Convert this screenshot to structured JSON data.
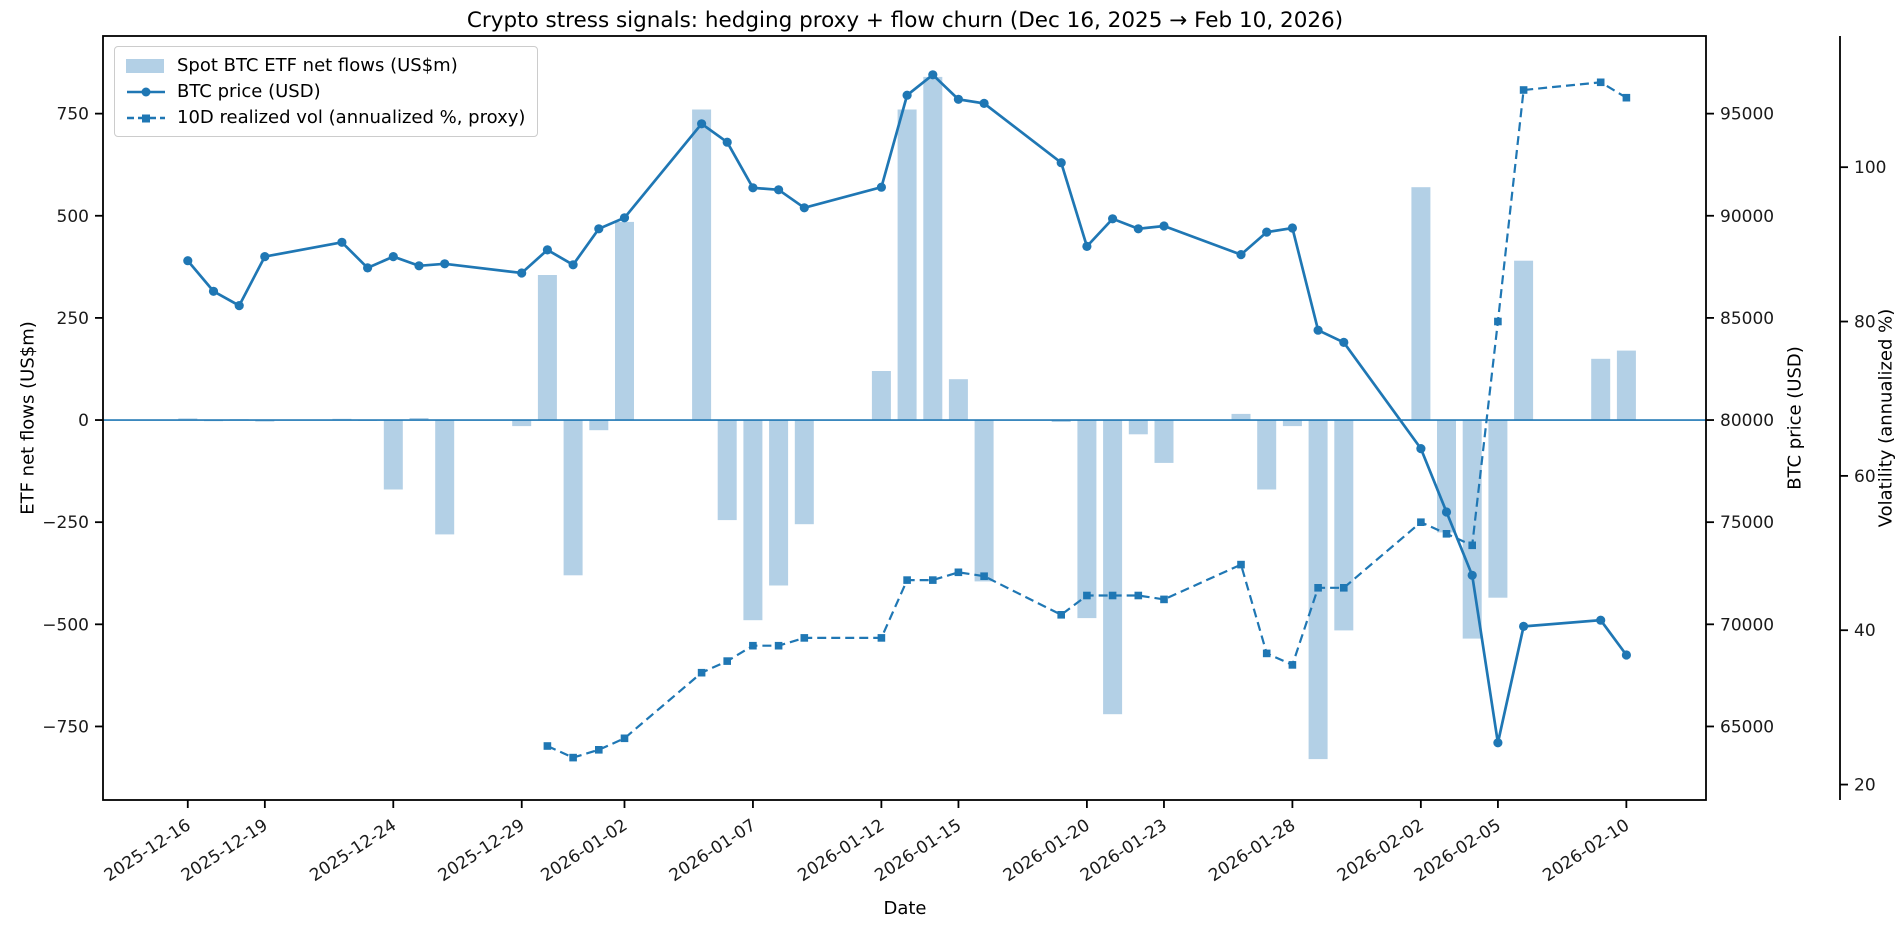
{
  "title": "Crypto stress signals: hedging proxy + flow churn (Dec 16, 2025 → Feb 10, 2026)",
  "colors": {
    "accent": "#1f77b4",
    "bar_fill": "#b3d0e6",
    "legend_border": "#cccccc",
    "spine": "#000000",
    "tick_label": "#1a1a1a"
  },
  "chart_data": {
    "type": "combo",
    "title": "Crypto stress signals: hedging proxy + flow churn (Dec 16, 2025 → Feb 10, 2026)",
    "xlabel": "Date",
    "ylabel_left": "ETF net flows (US$m)",
    "ylabel_right": "BTC price (USD)",
    "ylabel_right2": "Volatility (annualized %)",
    "grid": false,
    "legend_position": "upper left",
    "dates": [
      "2025-12-16",
      "2025-12-17",
      "2025-12-18",
      "2025-12-19",
      "2025-12-22",
      "2025-12-23",
      "2025-12-24",
      "2025-12-25",
      "2025-12-26",
      "2025-12-29",
      "2025-12-30",
      "2025-12-31",
      "2026-01-01",
      "2026-01-02",
      "2026-01-05",
      "2026-01-06",
      "2026-01-07",
      "2026-01-08",
      "2026-01-09",
      "2026-01-12",
      "2026-01-13",
      "2026-01-14",
      "2026-01-15",
      "2026-01-16",
      "2026-01-19",
      "2026-01-20",
      "2026-01-21",
      "2026-01-22",
      "2026-01-23",
      "2026-01-26",
      "2026-01-27",
      "2026-01-28",
      "2026-01-29",
      "2026-01-30",
      "2026-02-02",
      "2026-02-03",
      "2026-02-04",
      "2026-02-05",
      "2026-02-06",
      "2026-02-09",
      "2026-02-10"
    ],
    "day_offsets": [
      0,
      1,
      2,
      3,
      6,
      7,
      8,
      9,
      10,
      13,
      14,
      15,
      16,
      17,
      20,
      21,
      22,
      23,
      24,
      27,
      28,
      29,
      30,
      31,
      34,
      35,
      36,
      37,
      38,
      41,
      42,
      43,
      44,
      45,
      48,
      49,
      50,
      51,
      52,
      55,
      56
    ],
    "series": [
      {
        "name": "Spot BTC ETF net flows (US$m)",
        "type": "bar",
        "axis": "flows",
        "values": [
          4,
          -3,
          2,
          -4,
          3,
          -2,
          -170,
          5,
          -280,
          -15,
          355,
          -380,
          -25,
          485,
          760,
          -245,
          -490,
          -405,
          -255,
          120,
          760,
          840,
          100,
          -395,
          -5,
          -485,
          -720,
          -35,
          -105,
          15,
          -170,
          -15,
          -830,
          -515,
          570,
          -275,
          -535,
          -435,
          390,
          150,
          170
        ]
      },
      {
        "name": "BTC price (USD)",
        "type": "line",
        "axis": "price",
        "values": [
          87800,
          86300,
          85600,
          88000,
          88700,
          87450,
          88000,
          87550,
          87650,
          87200,
          88330,
          87600,
          89360,
          89900,
          94500,
          93600,
          91370,
          91270,
          90390,
          91400,
          95900,
          96900,
          95700,
          95500,
          92600,
          88500,
          89850,
          89360,
          89500,
          88100,
          89200,
          89400,
          84400,
          83800,
          78600,
          75500,
          72400,
          64200,
          69900,
          70200,
          68500
        ]
      },
      {
        "name": "10D realized vol (annualized %, proxy)",
        "type": "dashed-line",
        "axis": "vol",
        "values": [
          null,
          null,
          null,
          null,
          null,
          null,
          null,
          null,
          null,
          null,
          25,
          23.5,
          24.5,
          26,
          34.5,
          36,
          38,
          38,
          39,
          39,
          46.5,
          46.5,
          47.5,
          47,
          42,
          44.5,
          44.5,
          44.5,
          44,
          48.5,
          37,
          35.5,
          45.5,
          45.5,
          54,
          52.5,
          51,
          80,
          110,
          111,
          109
        ]
      }
    ],
    "x_ticks": [
      {
        "label": "2025-12-16",
        "day": 0
      },
      {
        "label": "2025-12-19",
        "day": 3
      },
      {
        "label": "2025-12-24",
        "day": 8
      },
      {
        "label": "2025-12-29",
        "day": 13
      },
      {
        "label": "2026-01-02",
        "day": 17
      },
      {
        "label": "2026-01-07",
        "day": 22
      },
      {
        "label": "2026-01-12",
        "day": 27
      },
      {
        "label": "2026-01-15",
        "day": 30
      },
      {
        "label": "2026-01-20",
        "day": 35
      },
      {
        "label": "2026-01-23",
        "day": 38
      },
      {
        "label": "2026-01-28",
        "day": 43
      },
      {
        "label": "2026-02-02",
        "day": 48
      },
      {
        "label": "2026-02-05",
        "day": 51
      },
      {
        "label": "2026-02-10",
        "day": 56
      }
    ],
    "y_ticks_flows": [
      750,
      500,
      250,
      0,
      -250,
      -500,
      -750
    ],
    "y_ticks_price": [
      95000,
      90000,
      85000,
      80000,
      75000,
      70000,
      65000
    ],
    "y_ticks_vol": [
      100,
      80,
      60,
      40,
      20
    ],
    "flows_ylim": [
      -930,
      940
    ],
    "price_ylim": [
      61400,
      98800
    ],
    "vol_ylim": [
      18,
      117
    ],
    "x_domain_days": [
      -3.3,
      59.1
    ],
    "zero_line": 0
  }
}
